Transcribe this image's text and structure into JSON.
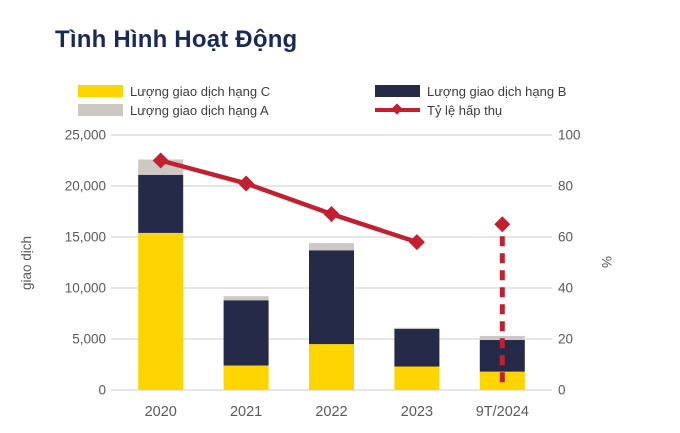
{
  "title": "Tình Hình Hoạt Động",
  "colors": {
    "title": "#1a2a57",
    "hang_c": "#ffd500",
    "hang_b": "#262a49",
    "hang_a": "#ccc9c5",
    "absorption": "#c21f30",
    "gridline": "#d8d8d8",
    "axis_text": "#5a5a5a",
    "background": "#ffffff"
  },
  "legend": {
    "items": [
      {
        "label": "Lượng giao dịch hạng C",
        "marker": "swatch",
        "colorKey": "hang_c"
      },
      {
        "label": "Lượng giao dịch hạng B",
        "marker": "swatch",
        "colorKey": "hang_b"
      },
      {
        "label": "Lượng giao dịch hạng A",
        "marker": "swatch",
        "colorKey": "hang_a"
      },
      {
        "label": "Tỷ lệ hấp thụ",
        "marker": "line",
        "colorKey": "absorption"
      }
    ]
  },
  "chart_data": {
    "type": "bar",
    "subtype": "stacked-bars-with-secondary-axis-line",
    "categories": [
      "2020",
      "2021",
      "2022",
      "2023",
      "9T/2024"
    ],
    "series": [
      {
        "name": "Lượng giao dịch hạng C",
        "type": "bar",
        "stack_order": 1,
        "colorKey": "hang_c",
        "values": [
          15400,
          2400,
          4500,
          2300,
          1800
        ]
      },
      {
        "name": "Lượng giao dịch hạng B",
        "type": "bar",
        "stack_order": 2,
        "colorKey": "hang_b",
        "values": [
          5700,
          6400,
          9200,
          3700,
          3100
        ]
      },
      {
        "name": "Lượng giao dịch hạng A",
        "type": "bar",
        "stack_order": 3,
        "colorKey": "hang_a",
        "values": [
          1500,
          400,
          700,
          100,
          400
        ]
      },
      {
        "name": "Tỷ lệ hấp thụ",
        "type": "line",
        "axis": "right",
        "colorKey": "absorption",
        "values": [
          90,
          81,
          69,
          58,
          65
        ],
        "last_point_style": "detached-diamond-with-dashed-drop-line"
      }
    ],
    "left_axis": {
      "label": "giao dịch",
      "min": 0,
      "max": 25000,
      "tick_interval": 5000,
      "ticks": [
        "0",
        "5,000",
        "10,000",
        "15,000",
        "20,000",
        "25,000"
      ]
    },
    "right_axis": {
      "label": "%",
      "min": 0,
      "max": 100,
      "tick_interval": 20,
      "ticks": [
        "0",
        "20",
        "40",
        "60",
        "80",
        "100"
      ]
    },
    "grid": "horizontal",
    "legend_position": "top"
  }
}
